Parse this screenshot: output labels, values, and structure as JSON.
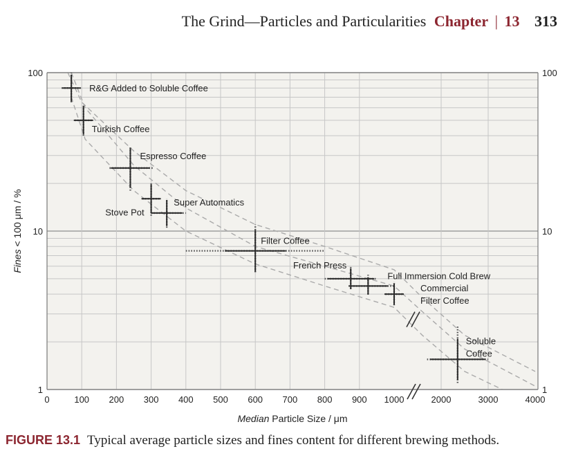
{
  "header": {
    "running_title": "The Grind—Particles and Particularities",
    "chapter_word": "Chapter",
    "separator": "|",
    "chapter_number": "13",
    "page_number": "313"
  },
  "caption": {
    "figure_label": "FIGURE 13.1",
    "text": "Typical average particle sizes and fines content for different brewing methods."
  },
  "chart_data": {
    "type": "scatter",
    "y_scale": "log",
    "x_scale": "broken-linear",
    "xlabel_italic": "Median",
    "xlabel_rest": " Particle Size / μm",
    "ylabel_italic": "Fines",
    "ylabel_rest": " < 100 μm / %",
    "ylim": [
      1,
      100
    ],
    "y_ticks": [
      "1",
      "10",
      "100"
    ],
    "x_ticks_left": [
      "0",
      "100",
      "200",
      "300",
      "400",
      "500",
      "600",
      "700",
      "800",
      "900",
      "1000"
    ],
    "x_ticks_right": [
      "2000",
      "3000",
      "4000"
    ],
    "x_segments": [
      [
        0,
        1000
      ],
      [
        1000,
        4000
      ]
    ],
    "grid": true,
    "points": [
      {
        "label": "R&G Added to Soluble Coffee",
        "x": 70,
        "y": 80,
        "x_err": [
          50,
          90
        ],
        "y_err": [
          65,
          100
        ]
      },
      {
        "label": "Turkish Coffee",
        "x": 105,
        "y": 50,
        "x_err": [
          80,
          130
        ],
        "y_err": [
          40,
          63
        ]
      },
      {
        "label": "Espresso Coffee",
        "x": 240,
        "y": 25,
        "x_err": [
          180,
          305
        ],
        "y_err": [
          18,
          34
        ]
      },
      {
        "label": "Stove Pot",
        "x": 300,
        "y": 16,
        "x_err": [
          275,
          325
        ],
        "y_err": [
          12.5,
          20
        ]
      },
      {
        "label": "Super Automatics",
        "x": 345,
        "y": 13,
        "x_err": [
          300,
          400
        ],
        "y_err": [
          10.5,
          16
        ]
      },
      {
        "label": "Filter Coffee",
        "x": 600,
        "y": 7.5,
        "x_err": [
          400,
          800
        ],
        "y_err": [
          5.5,
          11
        ]
      },
      {
        "label": "French Press",
        "x": 875,
        "y": 5,
        "x_err": [
          800,
          950
        ],
        "y_err": [
          4.3,
          6
        ]
      },
      {
        "label": "Full Immersion Cold Brew",
        "x": 925,
        "y": 4.5,
        "x_err": [
          875,
          1000
        ],
        "y_err": [
          4,
          5.3
        ]
      },
      {
        "label": "Commercial Filter Coffee",
        "x": 1000,
        "y": 4,
        "x_err": [
          975,
          1200
        ],
        "y_err": [
          3.4,
          4.8
        ]
      },
      {
        "label": "Soluble Coffee",
        "x": 2350,
        "y": 1.55,
        "x_err": [
          1700,
          3000
        ],
        "y_err": [
          1.1,
          2.5
        ]
      }
    ],
    "dashed_curves": [
      {
        "points": [
          [
            60,
            100
          ],
          [
            100,
            65
          ],
          [
            250,
            32
          ],
          [
            400,
            18
          ],
          [
            600,
            11
          ],
          [
            800,
            8
          ],
          [
            1000,
            5.7
          ],
          [
            1600,
            3.8
          ],
          [
            2500,
            2.2
          ],
          [
            4000,
            1.3
          ]
        ]
      },
      {
        "points": [
          [
            70,
            100
          ],
          [
            110,
            60
          ],
          [
            250,
            26
          ],
          [
            400,
            14
          ],
          [
            600,
            8
          ],
          [
            800,
            6
          ],
          [
            1000,
            4.5
          ],
          [
            1600,
            3.1
          ],
          [
            2500,
            1.8
          ],
          [
            4000,
            1.05
          ]
        ]
      },
      {
        "points": [
          [
            70,
            70
          ],
          [
            110,
            38
          ],
          [
            250,
            18
          ],
          [
            400,
            10
          ],
          [
            600,
            6.2
          ],
          [
            800,
            4.5
          ],
          [
            1000,
            3.3
          ],
          [
            1600,
            2.2
          ],
          [
            2500,
            1.3
          ],
          [
            3300,
            1.0
          ]
        ]
      }
    ]
  }
}
